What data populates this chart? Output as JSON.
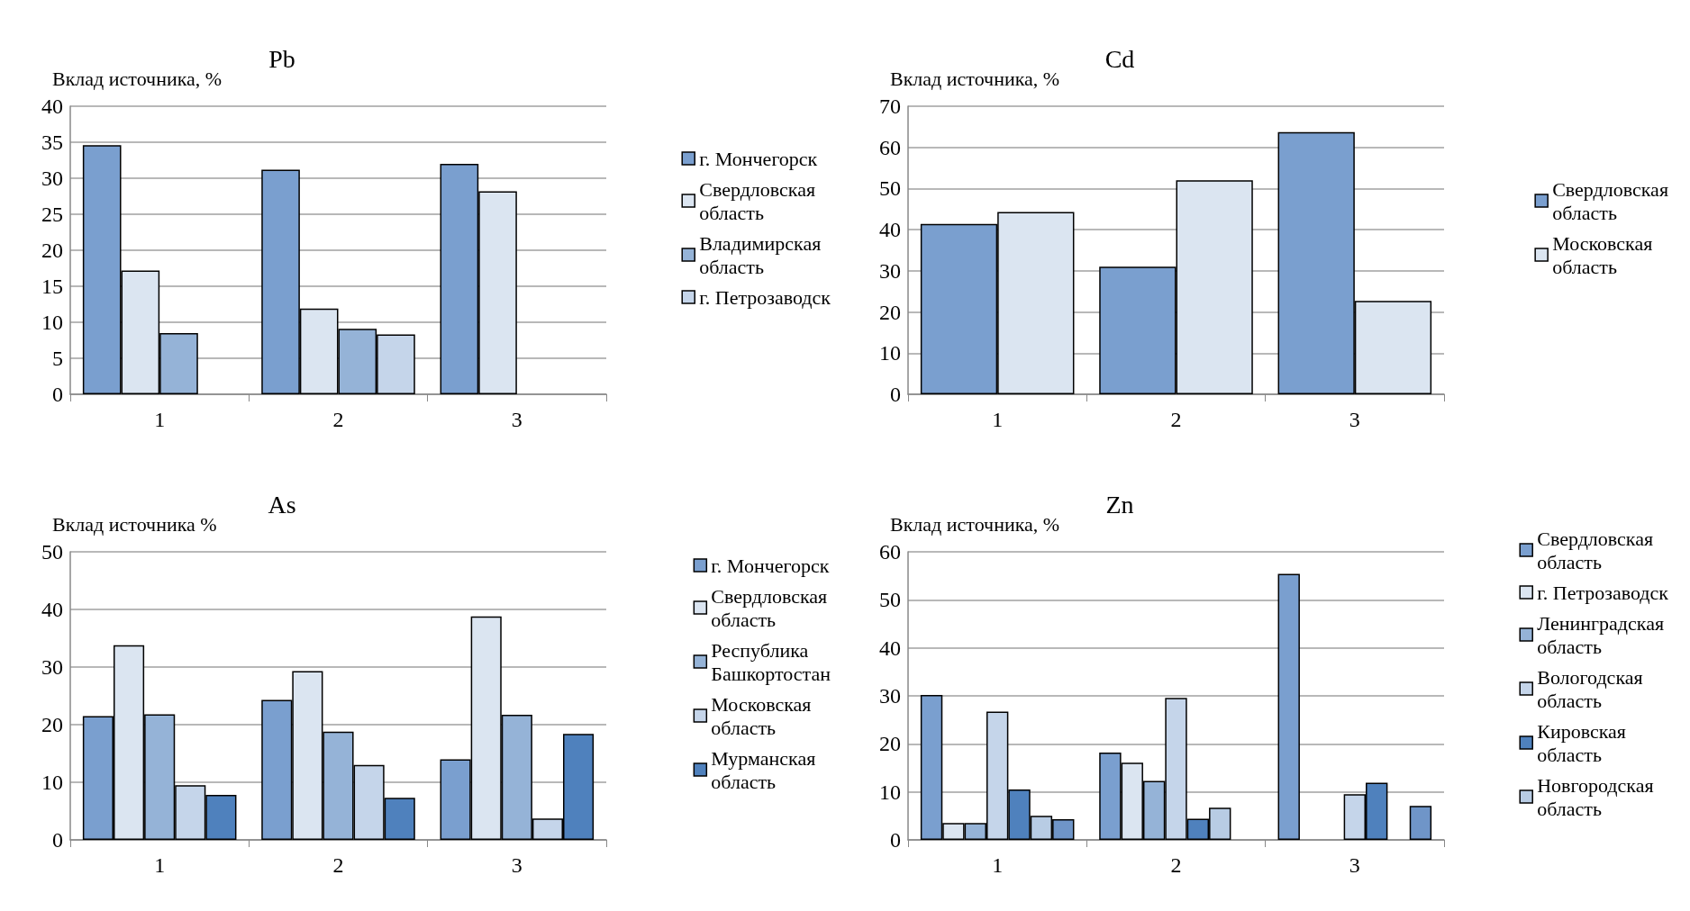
{
  "chart_data": [
    {
      "type": "bar",
      "title": "Pb",
      "ylabel": "Вклад источника, %",
      "categories": [
        "1",
        "2",
        "3"
      ],
      "ylim": [
        0,
        40
      ],
      "yticks": [
        0,
        5,
        10,
        15,
        20,
        25,
        30,
        35,
        40
      ],
      "grid": "y",
      "legend": "right",
      "series": [
        {
          "name": "г. Мончегорск",
          "color": "#7a9fcf",
          "values": [
            34.6,
            31.2,
            32.0
          ]
        },
        {
          "name": "Свердловская область",
          "color": "#dbe5f1",
          "values": [
            17.2,
            11.9,
            28.2
          ]
        },
        {
          "name": "Владимирская область",
          "color": "#95b3d7",
          "values": [
            8.5,
            9.1,
            null
          ]
        },
        {
          "name": "г. Петрозаводск",
          "color": "#c5d5ea",
          "values": [
            null,
            8.3,
            null
          ]
        }
      ]
    },
    {
      "type": "bar",
      "title": "Cd",
      "ylabel": "Вклад источника, %",
      "categories": [
        "1",
        "2",
        "3"
      ],
      "ylim": [
        0,
        70
      ],
      "yticks": [
        0,
        10,
        20,
        30,
        40,
        50,
        60,
        70
      ],
      "grid": "y",
      "legend": "right",
      "series": [
        {
          "name": "Свердловская область",
          "color": "#7a9fcf",
          "values": [
            41.4,
            31.0,
            63.7
          ]
        },
        {
          "name": "Московская область",
          "color": "#dbe5f1",
          "values": [
            44.3,
            52.0,
            22.7
          ]
        }
      ]
    },
    {
      "type": "bar",
      "title": "As",
      "ylabel": "Вклад источника %",
      "categories": [
        "1",
        "2",
        "3"
      ],
      "ylim": [
        0,
        50
      ],
      "yticks": [
        0,
        10,
        20,
        30,
        40,
        50
      ],
      "grid": "y",
      "legend": "right",
      "series": [
        {
          "name": "г. Мончегорск",
          "color": "#7a9fcf",
          "values": [
            21.5,
            24.3,
            14.0
          ]
        },
        {
          "name": "Свердловская область",
          "color": "#dbe5f1",
          "values": [
            33.8,
            29.3,
            38.8
          ]
        },
        {
          "name": "Республика Башкортостан",
          "color": "#95b3d7",
          "values": [
            21.8,
            18.8,
            21.7
          ]
        },
        {
          "name": "Московская область",
          "color": "#c5d5ea",
          "values": [
            9.5,
            13.0,
            3.7
          ]
        },
        {
          "name": "Мурманская область",
          "color": "#4f81bd",
          "values": [
            7.8,
            7.3,
            18.4
          ]
        }
      ]
    },
    {
      "type": "bar",
      "title": "Zn",
      "ylabel": "Вклад источника, %",
      "categories": [
        "1",
        "2",
        "3"
      ],
      "ylim": [
        0,
        60
      ],
      "yticks": [
        0,
        10,
        20,
        30,
        40,
        50,
        60
      ],
      "grid": "y",
      "legend": "right",
      "series": [
        {
          "name": "Свердловская область",
          "color": "#7a9fcf",
          "values": [
            30.2,
            18.2,
            55.4
          ]
        },
        {
          "name": "г. Петрозаводск",
          "color": "#dbe5f1",
          "values": [
            3.5,
            16.1,
            null
          ]
        },
        {
          "name": "Ленинградская область",
          "color": "#95b3d7",
          "values": [
            3.5,
            12.3,
            null
          ]
        },
        {
          "name": "Вологодская область",
          "color": "#c5d5ea",
          "values": [
            26.7,
            29.6,
            9.5
          ]
        },
        {
          "name": "Кировская область",
          "color": "#4f81bd",
          "values": [
            10.5,
            4.4,
            11.9
          ]
        },
        {
          "name": "Новгородская область",
          "color": "#b8cce4",
          "values": [
            5.0,
            6.7,
            null
          ]
        },
        {
          "color": "#6f95c8",
          "values": [
            4.3,
            null,
            7.1
          ]
        }
      ]
    }
  ]
}
